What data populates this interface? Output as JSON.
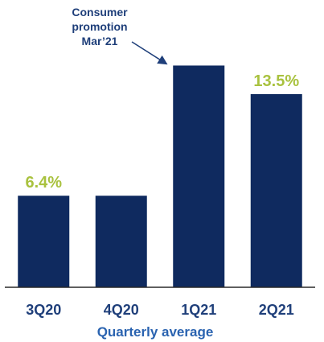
{
  "chart_data": {
    "type": "bar",
    "categories": [
      "3Q20",
      "4Q20",
      "1Q21",
      "2Q21"
    ],
    "values": [
      6.4,
      6.4,
      15.5,
      13.5
    ],
    "data_labels": [
      "6.4%",
      "",
      "",
      "13.5%"
    ],
    "xlabel": "Quarterly average",
    "ylabel": "",
    "ylim": [
      0,
      18
    ],
    "grid": false,
    "annotation": {
      "lines": [
        "Consumer",
        "promotion",
        "Mar’21"
      ],
      "target_category": "1Q21"
    }
  },
  "colors": {
    "bar": "#0f2a5f",
    "data_label": "#a9c23f",
    "tick_label": "#1f3f7a",
    "axis_title": "#2a63b0",
    "annotation": "#1f3f7a",
    "baseline": "#2a2a2a"
  }
}
